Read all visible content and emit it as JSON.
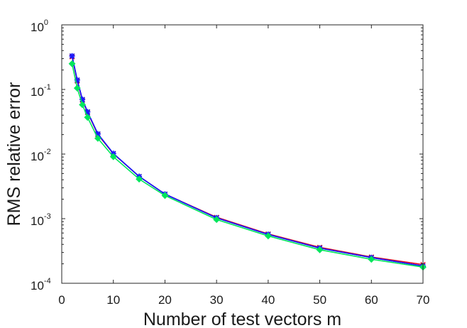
{
  "chart_data": {
    "type": "line",
    "title": "",
    "xlabel": "Number of test vectors m",
    "ylabel": "RMS relative error",
    "xlim": [
      0,
      70
    ],
    "ylim": [
      0.0001,
      1
    ],
    "yscale": "log",
    "grid": false,
    "xticks": [
      "0",
      "10",
      "20",
      "30",
      "40",
      "50",
      "60",
      "70"
    ],
    "yticks": [
      {
        "value": 0.0001,
        "base": "10",
        "exp": "-4"
      },
      {
        "value": 0.001,
        "base": "10",
        "exp": "-3"
      },
      {
        "value": 0.01,
        "base": "10",
        "exp": "-2"
      },
      {
        "value": 0.1,
        "base": "10",
        "exp": "-1"
      },
      {
        "value": 1,
        "base": "10",
        "exp": "0"
      }
    ],
    "x": [
      2,
      3,
      4,
      5,
      7,
      10,
      15,
      20,
      30,
      40,
      50,
      60,
      70
    ],
    "series": [
      {
        "color": "#e8001c",
        "marker": "x",
        "values": [
          0.32,
          0.135,
          0.068,
          0.044,
          0.02,
          0.0101,
          0.0045,
          0.0024,
          0.00105,
          0.00058,
          0.00036,
          0.000255,
          0.000195
        ]
      },
      {
        "color": "#00008b",
        "marker": "x",
        "values": [
          0.33,
          0.14,
          0.07,
          0.045,
          0.0205,
          0.0102,
          0.0045,
          0.0024,
          0.00103,
          0.00057,
          0.00035,
          0.00025,
          0.000185
        ]
      },
      {
        "color": "#1a1aff",
        "marker": "asterisk",
        "values": [
          0.33,
          0.14,
          0.07,
          0.045,
          0.0205,
          0.0102,
          0.0045,
          0.0024,
          0.00103,
          0.00057,
          0.00035,
          0.00025,
          0.000185
        ]
      },
      {
        "color": "#00e65c",
        "marker": "diamond",
        "values": [
          0.25,
          0.105,
          0.058,
          0.037,
          0.0175,
          0.0091,
          0.0041,
          0.00228,
          0.00097,
          0.00054,
          0.00033,
          0.000235,
          0.000178
        ]
      }
    ]
  }
}
